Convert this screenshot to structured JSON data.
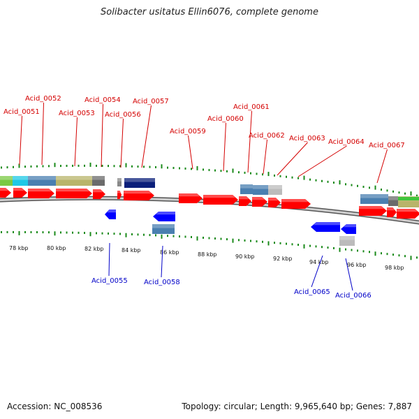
{
  "title": "Solibacter usitatus Ellin6076, complete genome",
  "footer": {
    "accession": "Accession: NC_008536",
    "info": "Topology: circular; Length: 9,965,640 bp; Genes: 7,887"
  },
  "colors": {
    "forward": "#ff0000",
    "reverse": "#0000ff",
    "top_label": "#d40000",
    "bottom_label": "#0000c8",
    "backbone": "#888888",
    "tick": "#1a8a1a"
  },
  "kbp_ticks": [
    "78 kbp",
    "80 kbp",
    "82 kbp",
    "84 kbp",
    "86 kbp",
    "88 kbp",
    "90 kbp",
    "92 kbp",
    "94 kbp",
    "96 kbp",
    "98 kbp"
  ],
  "top_labels": [
    "Acid_0051",
    "Acid_0052",
    "Acid_0053",
    "Acid_0054",
    "Acid_0056",
    "Acid_0057",
    "Acid_0059",
    "Acid_0060",
    "Acid_0061",
    "Acid_0062",
    "Acid_0063",
    "Acid_0064",
    "Acid_0067"
  ],
  "bottom_labels": [
    "Acid_0055",
    "Acid_0058",
    "Acid_0065",
    "Acid_0066"
  ]
}
